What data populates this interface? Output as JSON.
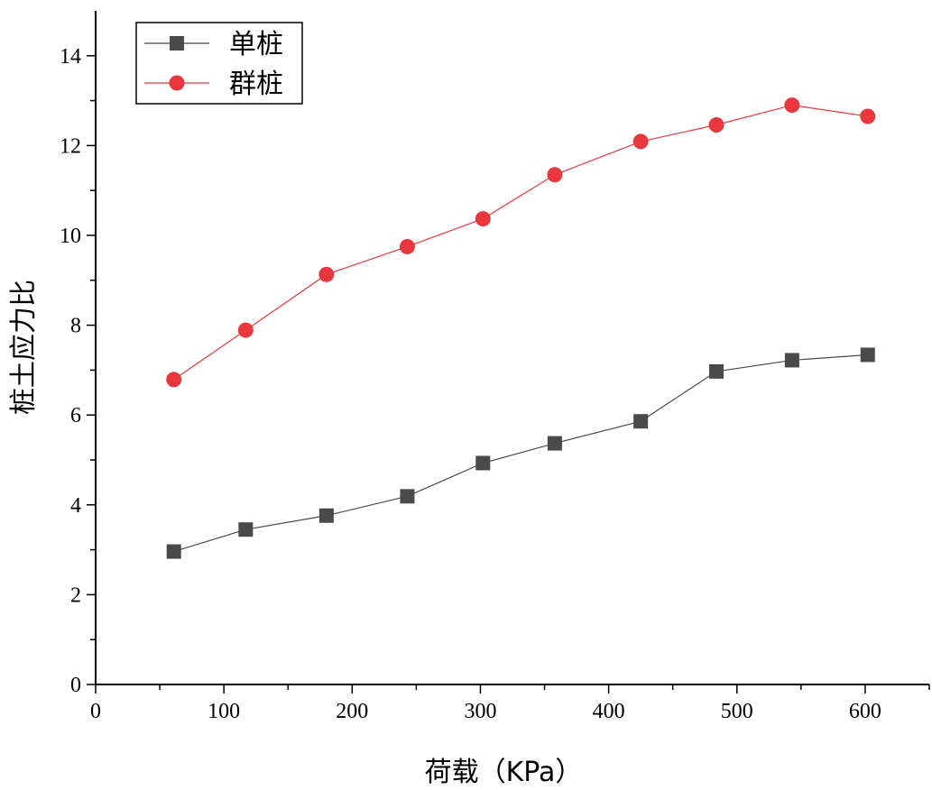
{
  "chart_data": {
    "type": "line",
    "title": "",
    "xlabel": "荷载（KPa）",
    "ylabel": "桩土应力比",
    "xlim": [
      0,
      650
    ],
    "ylim": [
      0,
      15
    ],
    "x_ticks": [
      0,
      100,
      200,
      300,
      400,
      500,
      600
    ],
    "y_ticks": [
      0,
      2,
      4,
      6,
      8,
      10,
      12,
      14
    ],
    "grid": false,
    "legend_position": "top-left",
    "series": [
      {
        "name": "单桩",
        "marker": "square",
        "color": "#4a4a4a",
        "x": [
          61,
          117,
          180,
          243,
          302,
          358,
          425,
          484,
          543,
          602
        ],
        "y": [
          2.96,
          3.45,
          3.76,
          4.19,
          4.93,
          5.37,
          5.86,
          6.97,
          7.22,
          7.34
        ]
      },
      {
        "name": "群桩",
        "marker": "circle",
        "color": "#e8383d",
        "x": [
          61,
          117,
          180,
          243,
          302,
          358,
          425,
          484,
          543,
          602
        ],
        "y": [
          6.79,
          7.89,
          9.13,
          9.75,
          10.37,
          11.35,
          12.09,
          12.46,
          12.9,
          12.65
        ]
      }
    ]
  }
}
